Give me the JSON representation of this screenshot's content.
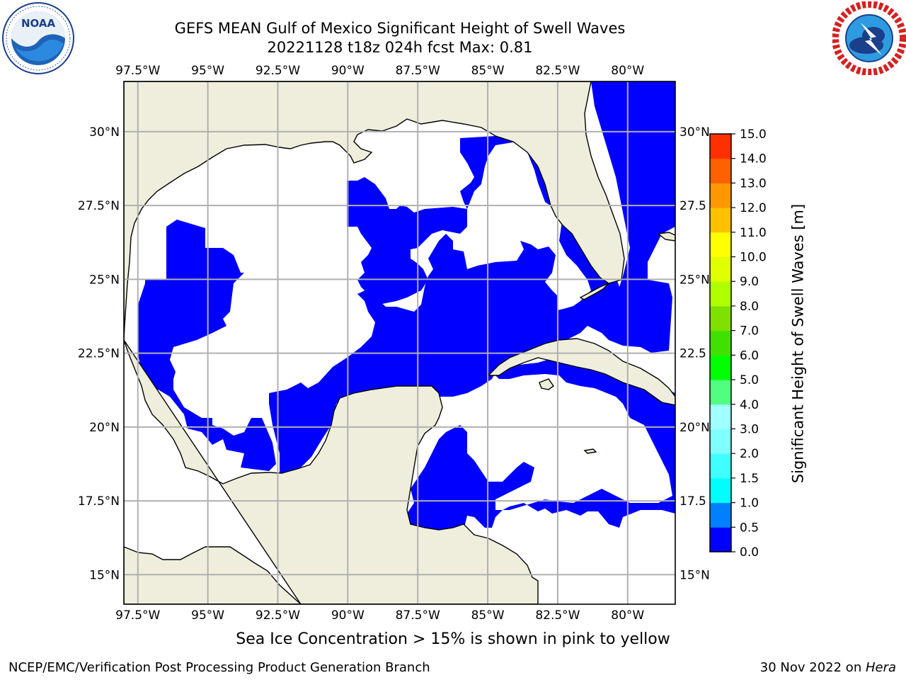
{
  "title": {
    "line1": "GEFS MEAN Gulf of Mexico Significant Height of Swell Waves",
    "line2": "20221128 t18z 024h fcst   Max: 0.81"
  },
  "logos": {
    "noaa_text": "NOAA",
    "noaa_ring": "NATIONAL OCEANIC AND ATMOSPHERIC ADMINISTRATION · U.S. DEPARTMENT OF COMMERCE",
    "nws_ring": "NATIONAL WEATHER SERVICE"
  },
  "map": {
    "lon_labels": [
      "97.5°W",
      "95°W",
      "92.5°W",
      "90°W",
      "87.5°W",
      "85°W",
      "82.5°W",
      "80°W"
    ],
    "lon_values": [
      -97.5,
      -95,
      -92.5,
      -90,
      -87.5,
      -85,
      -82.5,
      -80
    ],
    "lat_labels": [
      "30°N",
      "27.5°N",
      "25°N",
      "22.5°N",
      "20°N",
      "17.5°N",
      "15°N"
    ],
    "lat_values": [
      30,
      27.5,
      25,
      22.5,
      20,
      17.5,
      15
    ],
    "right_lat_labels": [
      "30°N",
      "27.5",
      "25°N",
      "22.5",
      "20°N",
      "17.5",
      "15°N"
    ],
    "extent": {
      "lon_min": -98,
      "lon_max": -78.3,
      "lat_min": 14,
      "lat_max": 31.7
    },
    "grid": true,
    "land_color": "#efeedc",
    "water_zero_color": "#ffffff",
    "swell_color": "#0000ff",
    "swell_pacific_color": "#0080ff"
  },
  "colorbar": {
    "tick_labels": [
      "15.0",
      "14.0",
      "13.0",
      "12.0",
      "11.0",
      "10.0",
      "9.0",
      "8.0",
      "7.0",
      "6.0",
      "5.0",
      "4.0",
      "3.0",
      "2.0",
      "1.5",
      "1.0",
      "0.5",
      "0.0"
    ],
    "colors": [
      "#0000ff",
      "#0080ff",
      "#00ffff",
      "#40ffff",
      "#80ffff",
      "#a0ffff",
      "#50ff80",
      "#00ff00",
      "#40e000",
      "#80e000",
      "#b0ff00",
      "#e0ff00",
      "#ffff00",
      "#ffc000",
      "#ff9800",
      "#ff6000",
      "#ff3000",
      "#ff0000"
    ],
    "label": "Significant Height of Swell Waves [m]"
  },
  "caption": "Sea Ice Concentration > 15% is shown in pink to yellow",
  "footer": {
    "left": "NCEP/EMC/Verification Post Processing Product Generation Branch",
    "right_prefix": "30 Nov 2022 on ",
    "right_italic": "Hera"
  }
}
